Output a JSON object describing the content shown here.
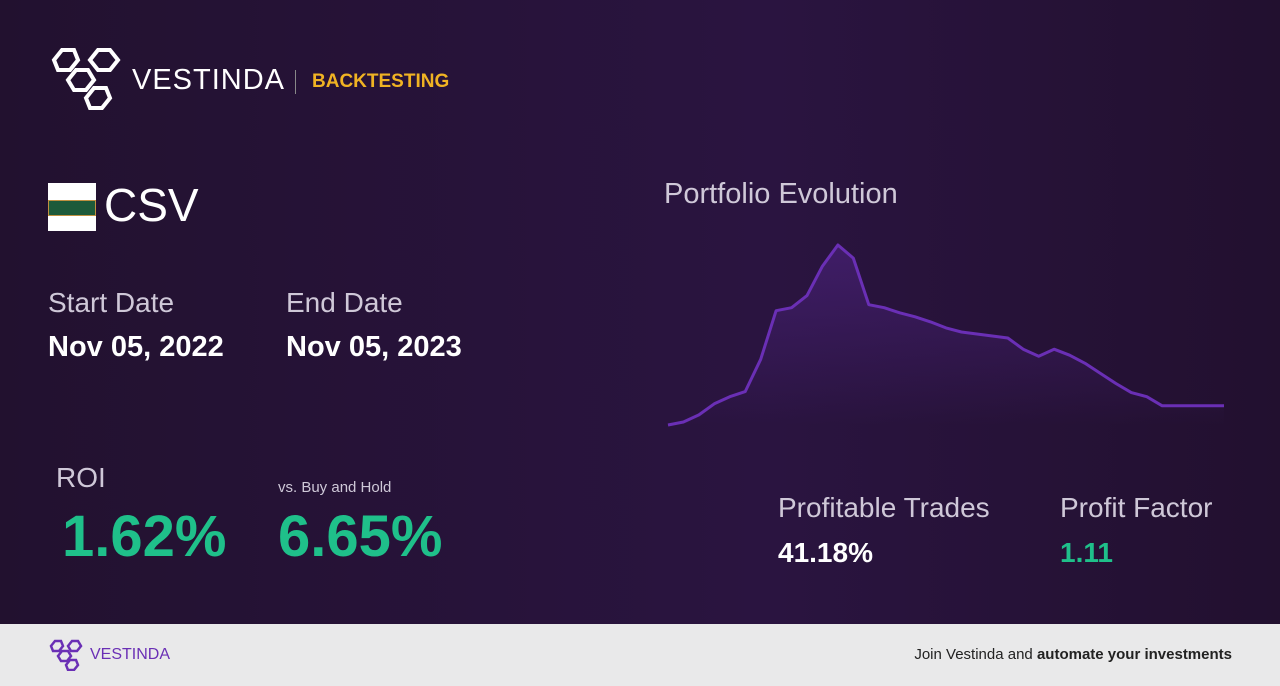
{
  "header": {
    "brand": "VESTINDA",
    "section": "BACKTESTING"
  },
  "asset": {
    "ticker": "CSV"
  },
  "dates": {
    "start_label": "Start Date",
    "start": "Nov 05, 2022",
    "end_label": "End Date",
    "end": "Nov 05, 2023"
  },
  "returns": {
    "roi_label": "ROI",
    "roi": "1.62%",
    "bh_label": "vs. Buy and Hold",
    "bh": "6.65%"
  },
  "chart_data": {
    "type": "line",
    "title": "Portfolio Evolution",
    "color": "#6a2fb5",
    "values": [
      5,
      8,
      15,
      26,
      33,
      38,
      70,
      118,
      121,
      133,
      162,
      183,
      170,
      124,
      121,
      116,
      112,
      107,
      101,
      97,
      95,
      93,
      91,
      80,
      73,
      80,
      74,
      66,
      56,
      46,
      37,
      33,
      24,
      24,
      24,
      24,
      24
    ]
  },
  "stats": {
    "trades_label": "Profitable Trades",
    "trades": "41.18%",
    "pf_label": "Profit Factor",
    "pf": "1.11"
  },
  "footer": {
    "brand": "VESTINDA",
    "text": "Join Vestinda and",
    "bold": "automate your investments"
  }
}
